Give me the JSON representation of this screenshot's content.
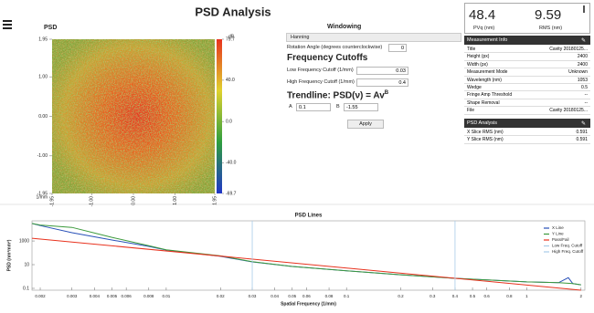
{
  "header": {
    "title": "PSD Analysis"
  },
  "chart_data": [
    {
      "type": "heatmap",
      "title": "PSD",
      "xlabel": "1/mm",
      "xlim": [
        -1.95,
        1.95
      ],
      "xticks": [
        -1.95,
        {
          "value": -1,
          "label": "-1.00"
        },
        {
          "value": 0,
          "label": "0.00"
        },
        {
          "value": 1,
          "label": "1.00"
        },
        1.95
      ],
      "ylim": [
        -1.95,
        1.95
      ],
      "yticks": [
        1.95,
        {
          "value": 1,
          "label": "1.00"
        },
        {
          "value": 0,
          "label": "0.00"
        },
        {
          "value": -1,
          "label": "-1.00"
        },
        -1.95
      ],
      "colorbar": {
        "label": "dB",
        "lim": [
          -69.7,
          79.7
        ],
        "ticks": [
          79.7,
          {
            "value": 40,
            "label": "40.0"
          },
          {
            "value": 0,
            "label": "0.0"
          },
          {
            "value": -40,
            "label": "-40.0"
          },
          -69.7
        ],
        "colors": [
          "#2036c8",
          "#2e9e3e",
          "#e0d22e",
          "#e8321e"
        ]
      }
    },
    {
      "type": "line",
      "title": "PSD Lines",
      "xlabel": "Spatial Frequency (1/mm)",
      "ylabel": "PSD (nm²mm²)",
      "xlog": true,
      "ylog": true,
      "xlim": [
        0.0018,
        2.1
      ],
      "ylim": [
        0.07,
        50000
      ],
      "xticks": [
        0.002,
        0.003,
        0.004,
        0.005,
        0.006,
        0.008,
        0.01,
        0.02,
        0.03,
        0.04,
        0.05,
        0.06,
        0.08,
        0.1,
        0.2,
        0.3,
        0.4,
        0.5,
        0.6,
        0.8,
        1,
        2
      ],
      "yticks": [
        1000,
        10,
        0.1
      ],
      "legend": "upper right",
      "series": [
        {
          "name": "X Line",
          "color": "#2850b8",
          "x": [
            0.0018,
            0.002,
            0.003,
            0.005,
            0.008,
            0.01,
            0.02,
            0.03,
            0.05,
            0.1,
            0.2,
            0.4,
            1,
            1.5,
            1.7,
            1.8,
            2
          ],
          "values": [
            30000,
            20000,
            5000,
            1200,
            350,
            170,
            50,
            17,
            7,
            3,
            1.4,
            0.7,
            0.35,
            0.3,
            0.8,
            0.25,
            0.2
          ]
        },
        {
          "name": "Y Line",
          "color": "#3c9a3c",
          "x": [
            0.0018,
            0.002,
            0.003,
            0.005,
            0.008,
            0.01,
            0.02,
            0.03,
            0.05,
            0.1,
            0.2,
            0.4,
            1,
            1.5,
            1.8,
            2
          ],
          "values": [
            30000,
            22000,
            14000,
            2000,
            400,
            180,
            55,
            18,
            7,
            3,
            1.4,
            0.7,
            0.35,
            0.3,
            0.25,
            0.2
          ]
        },
        {
          "name": "Pass/Fail",
          "color": "#e8321e",
          "x": [
            0.0018,
            2
          ],
          "values": [
            1700,
            0.07
          ]
        },
        {
          "name": "Low Freq. Cutoff",
          "color": "#a8cce8",
          "xline": 0.03
        },
        {
          "name": "High Freq. Cutoff",
          "color": "#a8cce8",
          "xline": 0.4
        }
      ]
    }
  ],
  "windowing": {
    "title": "Windowing",
    "window": "Hanning",
    "rotation_label": "Rotation Angle (degrees counterclockwise)",
    "rotation": "0"
  },
  "cutoffs": {
    "title": "Frequency Cutoffs",
    "low_label": "Low Frequency Cutoff (1/mm)",
    "low": "0.03",
    "high_label": "High Frequency Cutoff (1/mm)",
    "high": "0.4"
  },
  "trendline": {
    "title": "Trendline: PSD(ν) = Av",
    "superscript": "B",
    "a_label": "A",
    "a": "0.1",
    "b_label": "B",
    "b": "-1.55",
    "button": "Apply"
  },
  "summary": [
    {
      "value": "48.4",
      "label": "PVq (nm)"
    },
    {
      "value": "9.59",
      "label": "RMS (nm)"
    }
  ],
  "measurement_info": {
    "title": "Measurement Info",
    "rows": [
      [
        "Title",
        "Cavity 20180125..."
      ],
      [
        "Height (px)",
        "2400"
      ],
      [
        "Width (px)",
        "2400"
      ],
      [
        "Measurement Mode",
        "Unknown"
      ],
      [
        "Wavelength (nm)",
        "1053"
      ],
      [
        "Wedge",
        "0.5"
      ],
      [
        "Fringe Amp Threshold",
        "--"
      ],
      [
        "Shape Removal",
        "--"
      ],
      [
        "File",
        "Cavity 20180125..."
      ]
    ]
  },
  "psd_analysis": {
    "title": "PSD Analysis",
    "rows": [
      [
        "X Slice RMS (nm)",
        "0.591"
      ],
      [
        "Y Slice RMS (nm)",
        "0.591"
      ]
    ]
  }
}
